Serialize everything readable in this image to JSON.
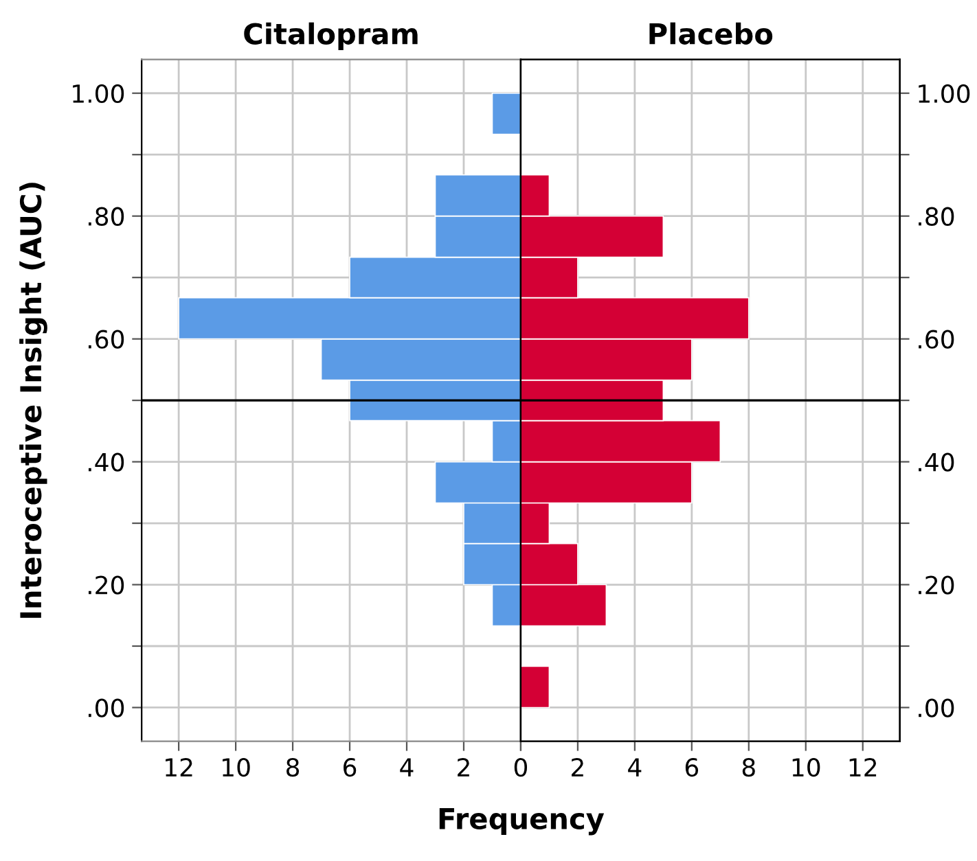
{
  "chart_data": [
    {
      "type": "histogram",
      "orientation": "horizontal",
      "title": "Citalopram",
      "xlabel": "Frequency",
      "ylabel": "Interoceptive Insight (AUC)",
      "color": "#5b9be6",
      "bins": [
        0.133,
        0.2,
        0.267,
        0.333,
        0.4,
        0.467,
        0.533,
        0.6,
        0.667,
        0.733,
        0.8,
        0.867,
        0.933,
        1.0
      ],
      "values": [
        1,
        2,
        2,
        3,
        1,
        6,
        7,
        12,
        6,
        3,
        3,
        0,
        1
      ],
      "xlim": [
        13.3,
        0
      ],
      "xticks": [
        12,
        10,
        8,
        6,
        4,
        2,
        {
          "value": 0,
          "label": null
        }
      ],
      "ylim": [
        -0.055,
        1.055
      ],
      "yticks": [
        {
          "value": 0,
          "label": ".00"
        },
        {
          "value": 0.1,
          "label": null
        },
        {
          "value": 0.2,
          "label": ".20"
        },
        {
          "value": 0.3,
          "label": null
        },
        {
          "value": 0.4,
          "label": ".40"
        },
        {
          "value": 0.5,
          "label": null
        },
        {
          "value": 0.6,
          "label": ".60"
        },
        {
          "value": 0.7,
          "label": null
        },
        {
          "value": 0.8,
          "label": ".80"
        },
        {
          "value": 0.9,
          "label": null
        },
        {
          "value": 1.0,
          "label": "1.00"
        }
      ],
      "ref_lines": [
        {
          "axis": "y",
          "value": 0.5,
          "color": "#000000"
        }
      ],
      "grid": true
    },
    {
      "type": "histogram",
      "orientation": "horizontal",
      "title": "Placebo",
      "color": "#d40035",
      "bins": [
        0,
        0.067,
        0.133,
        0.2,
        0.267,
        0.333,
        0.4,
        0.467,
        0.533,
        0.6,
        0.667,
        0.733,
        0.8,
        0.867
      ],
      "values": [
        1,
        0,
        3,
        2,
        1,
        6,
        7,
        5,
        6,
        8,
        2,
        5,
        1
      ],
      "xlim": [
        0,
        13.3
      ],
      "xticks": [
        0,
        2,
        4,
        6,
        8,
        10,
        12
      ],
      "ylim": [
        -0.055,
        1.055
      ],
      "y2lim": [
        -0.055,
        1.055
      ],
      "y2ticks": [
        {
          "value": 0,
          "label": ".00"
        },
        {
          "value": 0.1,
          "label": null
        },
        {
          "value": 0.2,
          "label": ".20"
        },
        {
          "value": 0.3,
          "label": null
        },
        {
          "value": 0.4,
          "label": ".40"
        },
        {
          "value": 0.5,
          "label": null
        },
        {
          "value": 0.6,
          "label": ".60"
        },
        {
          "value": 0.7,
          "label": null
        },
        {
          "value": 0.8,
          "label": ".80"
        },
        {
          "value": 0.9,
          "label": null
        },
        {
          "value": 1.0,
          "label": "1.00"
        }
      ],
      "ref_lines": [
        {
          "axis": "y",
          "value": 0.5,
          "color": "#000000"
        }
      ],
      "grid": true
    }
  ]
}
